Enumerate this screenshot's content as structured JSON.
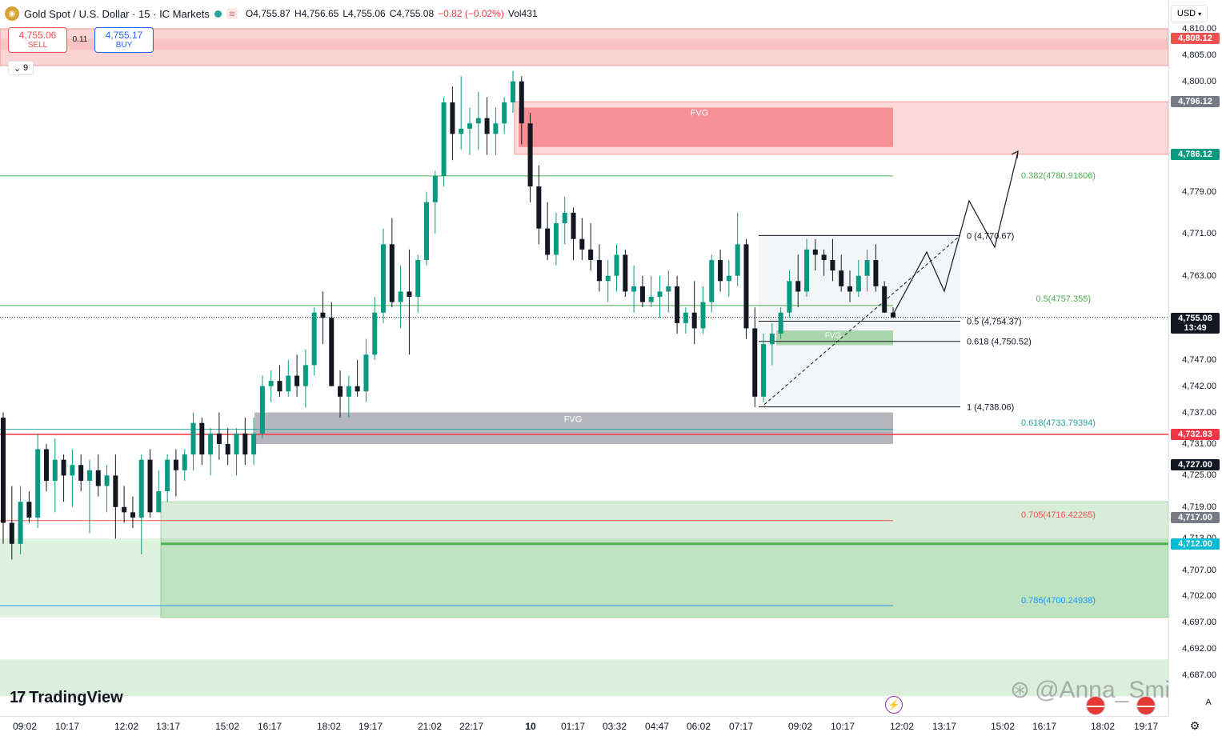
{
  "header": {
    "symbol": "Gold Spot / U.S. Dollar · 15 · IC Markets",
    "open": "O4,755.87",
    "high": "H4,756.65",
    "low": "L4,755.06",
    "close": "C4,755.08",
    "change": "−0.82 (−0.02%)",
    "volume": "Vol431"
  },
  "trade": {
    "sell_price": "4,755.06",
    "sell_label": "SELL",
    "buy_price": "4,755.17",
    "buy_label": "BUY",
    "spread": "0.11"
  },
  "indicator_toggle": "9",
  "currency": "USD",
  "brand": "TradingView",
  "watermark": "@Anna_Smith",
  "price_axis": {
    "ticks": [
      "4,810.00",
      "4,805.00",
      "4,800.00",
      "4,779.00",
      "4,771.00",
      "4,763.00",
      "4,747.00",
      "4,742.00",
      "4,737.00",
      "4,731.00",
      "4,725.00",
      "4,719.00",
      "4,713.00",
      "4,707.00",
      "4,702.00",
      "4,697.00",
      "4,692.00",
      "4,687.00"
    ],
    "tags": [
      {
        "text": "4,808.12",
        "color": "#ef5350"
      },
      {
        "text": "4,796.12",
        "color": "#787b86"
      },
      {
        "text": "4,786.12",
        "color": "#089981"
      },
      {
        "text": "4,755.08",
        "color": "#131722",
        "sub": "13:49"
      },
      {
        "text": "4,732.83",
        "color": "#f23645"
      },
      {
        "text": "4,727.00",
        "color": "#131722"
      },
      {
        "text": "4,717.00",
        "color": "#787b86"
      },
      {
        "text": "4,712.00",
        "color": "#00bcd4"
      }
    ]
  },
  "time_axis": [
    "09:02",
    "10:17",
    "12:02",
    "13:17",
    "15:02",
    "16:17",
    "18:02",
    "19:17",
    "21:02",
    "22:17",
    "10",
    "01:17",
    "03:32",
    "04:47",
    "06:02",
    "07:17",
    "09:02",
    "10:17",
    "12:02",
    "13:17",
    "15:02",
    "16:17",
    "18:02",
    "19:17"
  ],
  "annotations": {
    "fvg": "FVG",
    "fib_0": "0 (4,770.67)",
    "fib_05": "0.5 (4,754.37)",
    "fib_0618": "0.618 (4,750.52)",
    "fib_1": "1 (4,738.06)",
    "ext_0382": "0.382(4780.91606)",
    "ext_05": "0.5(4757.355)",
    "ext_0618": "0.618(4733.79394)",
    "ext_0705": "0.705(4716.42265)",
    "ext_0786": "0.786(4700.24938)"
  },
  "colors": {
    "up": "#089981",
    "down": "#131722",
    "supply": "#ef5350",
    "demand": "#4caf50"
  },
  "chart_data": {
    "type": "candlestick",
    "symbol": "XAUUSD",
    "timeframe": "15",
    "ylim": [
      4683,
      4813
    ],
    "last_price": 4755.08,
    "candles": [
      [
        4736,
        4737,
        4712,
        4716
      ],
      [
        4716,
        4723,
        4709,
        4712
      ],
      [
        4712,
        4723,
        4710,
        4720
      ],
      [
        4720,
        4722,
        4716,
        4717
      ],
      [
        4717,
        4733,
        4715,
        4730
      ],
      [
        4730,
        4731,
        4722,
        4724
      ],
      [
        4724,
        4732,
        4718,
        4728
      ],
      [
        4728,
        4729,
        4720,
        4725
      ],
      [
        4725,
        4730,
        4719,
        4727
      ],
      [
        4727,
        4729,
        4722,
        4724
      ],
      [
        4724,
        4728,
        4714,
        4726
      ],
      [
        4726,
        4729,
        4721,
        4723
      ],
      [
        4723,
        4727,
        4718,
        4725
      ],
      [
        4725,
        4729,
        4713,
        4719
      ],
      [
        4719,
        4723,
        4716,
        4718
      ],
      [
        4718,
        4721,
        4715,
        4717
      ],
      [
        4717,
        4729,
        4710,
        4728
      ],
      [
        4728,
        4730,
        4717,
        4718
      ],
      [
        4718,
        4726,
        4718,
        4722
      ],
      [
        4722,
        4729,
        4720,
        4728
      ],
      [
        4728,
        4730,
        4721,
        4726
      ],
      [
        4726,
        4730,
        4724,
        4729
      ],
      [
        4729,
        4737,
        4726,
        4735
      ],
      [
        4735,
        4736,
        4727,
        4729
      ],
      [
        4729,
        4734,
        4725,
        4733
      ],
      [
        4733,
        4737,
        4728,
        4731
      ],
      [
        4731,
        4734,
        4727,
        4729
      ],
      [
        4729,
        4734,
        4725,
        4733
      ],
      [
        4733,
        4736,
        4727,
        4729
      ],
      [
        4729,
        4736,
        4727,
        4733
      ],
      [
        4733,
        4744,
        4732,
        4742
      ],
      [
        4742,
        4745,
        4739,
        4743
      ],
      [
        4743,
        4746,
        4740,
        4741
      ],
      [
        4741,
        4747,
        4740,
        4744
      ],
      [
        4744,
        4748,
        4740,
        4742
      ],
      [
        4742,
        4749,
        4738,
        4746
      ],
      [
        4746,
        4757,
        4744,
        4756
      ],
      [
        4756,
        4760,
        4750,
        4755
      ],
      [
        4755,
        4758,
        4742,
        4742
      ],
      [
        4742,
        4745,
        4736,
        4740
      ],
      [
        4740,
        4744,
        4736,
        4742
      ],
      [
        4742,
        4747,
        4740,
        4741
      ],
      [
        4741,
        4751,
        4739,
        4748
      ],
      [
        4748,
        4759,
        4747,
        4756
      ],
      [
        4756,
        4772,
        4754,
        4769
      ],
      [
        4769,
        4774,
        4757,
        4758
      ],
      [
        4758,
        4765,
        4753,
        4760
      ],
      [
        4760,
        4768,
        4748,
        4759
      ],
      [
        4759,
        4767,
        4756,
        4766
      ],
      [
        4766,
        4779,
        4765,
        4777
      ],
      [
        4777,
        4783,
        4771,
        4782
      ],
      [
        4782,
        4797,
        4780,
        4796
      ],
      [
        4796,
        4799,
        4785,
        4790
      ],
      [
        4790,
        4801,
        4787,
        4791
      ],
      [
        4791,
        4795,
        4786,
        4792
      ],
      [
        4792,
        4798,
        4787,
        4793
      ],
      [
        4793,
        4797,
        4786,
        4790
      ],
      [
        4790,
        4795,
        4786,
        4792
      ],
      [
        4792,
        4797,
        4790,
        4796
      ],
      [
        4796,
        4802,
        4794,
        4800
      ],
      [
        4800,
        4801,
        4788,
        4792
      ],
      [
        4792,
        4794,
        4777,
        4780
      ],
      [
        4780,
        4784,
        4769,
        4772
      ],
      [
        4772,
        4777,
        4766,
        4767
      ],
      [
        4767,
        4775,
        4765,
        4773
      ],
      [
        4773,
        4778,
        4769,
        4775
      ],
      [
        4775,
        4776,
        4766,
        4770
      ],
      [
        4770,
        4774,
        4766,
        4768
      ],
      [
        4768,
        4773,
        4764,
        4766
      ],
      [
        4766,
        4769,
        4760,
        4762
      ],
      [
        4762,
        4766,
        4758,
        4763
      ],
      [
        4763,
        4769,
        4760,
        4767
      ],
      [
        4767,
        4768,
        4759,
        4760
      ],
      [
        4760,
        4765,
        4756,
        4761
      ],
      [
        4761,
        4763,
        4757,
        4758
      ],
      [
        4758,
        4763,
        4757,
        4759
      ],
      [
        4759,
        4763,
        4755,
        4760
      ],
      [
        4760,
        4764,
        4756,
        4761
      ],
      [
        4761,
        4763,
        4752,
        4754
      ],
      [
        4754,
        4757,
        4752,
        4756
      ],
      [
        4756,
        4762,
        4750,
        4753
      ],
      [
        4753,
        4761,
        4752,
        4758
      ],
      [
        4758,
        4767,
        4756,
        4766
      ],
      [
        4766,
        4768,
        4760,
        4762
      ],
      [
        4762,
        4766,
        4759,
        4763
      ],
      [
        4763,
        4775,
        4761,
        4769
      ],
      [
        4769,
        4770,
        4751,
        4753
      ],
      [
        4753,
        4757,
        4738,
        4740
      ],
      [
        4740,
        4752,
        4739,
        4750
      ],
      [
        4750,
        4754,
        4746,
        4752
      ],
      [
        4752,
        4757,
        4751,
        4756
      ],
      [
        4756,
        4764,
        4755,
        4762
      ],
      [
        4762,
        4767,
        4757,
        4760
      ],
      [
        4760,
        4770,
        4759,
        4768
      ],
      [
        4768,
        4770,
        4764,
        4767
      ],
      [
        4767,
        4768,
        4763,
        4766
      ],
      [
        4766,
        4770,
        4762,
        4764
      ],
      [
        4764,
        4767,
        4760,
        4761
      ],
      [
        4761,
        4764,
        4758,
        4760
      ],
      [
        4760,
        4766,
        4759,
        4763
      ],
      [
        4763,
        4768,
        4760,
        4766
      ],
      [
        4766,
        4769,
        4760,
        4761
      ],
      [
        4761,
        4762,
        4756,
        4756
      ],
      [
        4756,
        4757,
        4755,
        4755.08
      ]
    ],
    "zones": [
      {
        "label": "supply",
        "from": 4803,
        "to": 4810
      },
      {
        "label": "supply",
        "from": 4786.12,
        "to": 4796.12
      },
      {
        "label": "FVG",
        "from": 4787,
        "to": 4793
      },
      {
        "label": "FVG",
        "from": 4731,
        "to": 4736
      },
      {
        "label": "FVG",
        "from": 4749.8,
        "to": 4751.6
      },
      {
        "label": "demand",
        "from": 4698,
        "to": 4720
      }
    ],
    "fib_retracement": [
      {
        "level": 0,
        "price": 4770.67
      },
      {
        "level": 0.5,
        "price": 4754.37
      },
      {
        "level": 0.618,
        "price": 4750.52
      },
      {
        "level": 1,
        "price": 4738.06
      }
    ],
    "fib_extension": [
      {
        "level": 0.382,
        "price": 4780.91606
      },
      {
        "level": 0.5,
        "price": 4757.355
      },
      {
        "level": 0.618,
        "price": 4733.79394
      },
      {
        "level": 0.705,
        "price": 4716.42265
      },
      {
        "level": 0.786,
        "price": 4700.24938
      }
    ]
  }
}
